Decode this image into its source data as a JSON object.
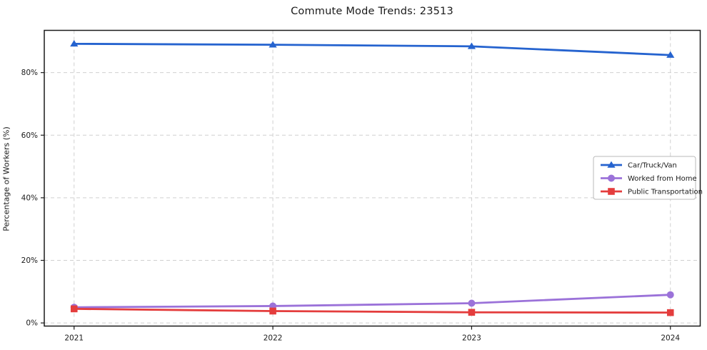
{
  "chart_data": {
    "type": "line",
    "title": "Commute Mode Trends: 23513",
    "xlabel": "",
    "ylabel": "Percentage of Workers (%)",
    "x": [
      2021,
      2022,
      2023,
      2024
    ],
    "x_tick_labels": [
      "2021",
      "2022",
      "2023",
      "2024"
    ],
    "yticks": [
      0,
      20,
      40,
      60,
      80
    ],
    "ytick_labels": [
      "0%",
      "20%",
      "40%",
      "60%",
      "80%"
    ],
    "ylim": [
      -1.0,
      93.5
    ],
    "xlim": [
      2020.85,
      2024.15
    ],
    "grid": true,
    "grid_style": "dashed",
    "series": [
      {
        "name": "Car/Truck/Van",
        "values": [
          89.2,
          88.9,
          88.4,
          85.6
        ],
        "color": "#2563cf",
        "marker": "triangle"
      },
      {
        "name": "Worked from Home",
        "values": [
          5.0,
          5.4,
          6.3,
          9.0
        ],
        "color": "#9b72d9",
        "marker": "circle"
      },
      {
        "name": "Public Transportation",
        "values": [
          4.5,
          3.8,
          3.4,
          3.3
        ],
        "color": "#e43d3d",
        "marker": "square"
      }
    ],
    "legend": {
      "position": "center-right",
      "entries": [
        "Car/Truck/Van",
        "Worked from Home",
        "Public Transportation"
      ]
    },
    "colors": {
      "grid": "#d0d0d0",
      "spine": "#1a1a1a",
      "text": "#1a1a1a",
      "legend_border": "#b8b8b8",
      "legend_bg": "#ffffff"
    }
  }
}
